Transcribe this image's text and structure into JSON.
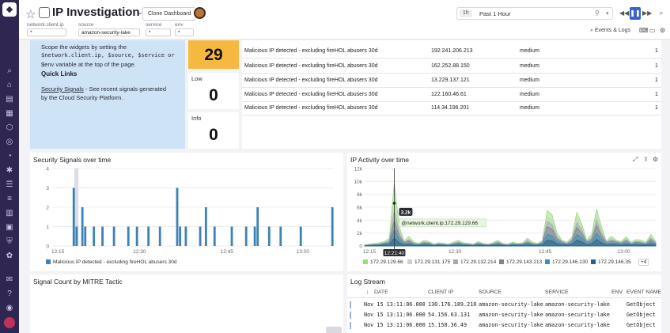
{
  "header": {
    "title": "IP Investigation",
    "clone_label": "Clone Dashboard",
    "time_badge": "1h",
    "time_label": "Past 1 Hour",
    "events_logs_label": "Events & Logs"
  },
  "filters": [
    {
      "label": "network.client.ip",
      "value": "*"
    },
    {
      "label": "source",
      "value": "amazon-security-lake"
    },
    {
      "label": "service",
      "value": "*"
    },
    {
      "label": "env",
      "value": "*"
    }
  ],
  "intro": {
    "line1": "Scope the widgets by setting the",
    "line2": "$network.client.ip, $source, $service or",
    "line3": "$env variable at the top of the page.",
    "quick_links_title": "Quick Links",
    "security_signals_link": "Security Signals",
    "security_signals_desc1": " - See recent signals generated",
    "security_signals_desc2": "by the Cloud Security Platform."
  },
  "severity": {
    "medium_value": "29",
    "low_label": "Low",
    "low_value": "0",
    "info_label": "Info",
    "info_value": "0"
  },
  "signals_table": [
    {
      "rule": "Malicious IP detected - excluding fireHOL abusers 30d",
      "ip": "192.241.206.213",
      "severity": "medium",
      "count": "1"
    },
    {
      "rule": "Malicious IP detected - excluding fireHOL abusers 30d",
      "ip": "162.252.88.150",
      "severity": "medium",
      "count": "1"
    },
    {
      "rule": "Malicious IP detected - excluding fireHOL abusers 30d",
      "ip": "13.229.137.121",
      "severity": "medium",
      "count": "1"
    },
    {
      "rule": "Malicious IP detected - excluding fireHOL abusers 30d",
      "ip": "122.160.46.61",
      "severity": "medium",
      "count": "1"
    },
    {
      "rule": "Malicious IP detected - excluding fireHOL abusers 30d",
      "ip": "114.34.196.201",
      "severity": "medium",
      "count": "1"
    }
  ],
  "widgets": {
    "security_signals_title": "Security Signals over time",
    "ip_activity_title": "IP Activity over time",
    "mitre_title": "Signal Count by MITRE Tactic",
    "log_stream_title": "Log Stream"
  },
  "chart_data": [
    {
      "type": "bar",
      "title": "Security Signals over time",
      "x_ticks": [
        "12:15",
        "12:30",
        "12:45",
        "13:00"
      ],
      "y_ticks": [
        "0",
        "1",
        "2",
        "3",
        "4"
      ],
      "ylim": [
        0,
        4
      ],
      "series": [
        {
          "name": "Malicious IP detected - excluding fireHOL abusers 30d",
          "color": "#3d82b8",
          "values": [
            0,
            0,
            0,
            0,
            0,
            0,
            0,
            3,
            1,
            0,
            2,
            1,
            0,
            0,
            1,
            0,
            0,
            1,
            0,
            0,
            0,
            1,
            0,
            0,
            0,
            0,
            1,
            0,
            0,
            1,
            0,
            0,
            0,
            1,
            0,
            0,
            0,
            1,
            0,
            0,
            0,
            0,
            0,
            3,
            1,
            0,
            1,
            0,
            0,
            0,
            0,
            1,
            0,
            2,
            0,
            0,
            1,
            0,
            0,
            0,
            0,
            0,
            1,
            0,
            0,
            0,
            0,
            1,
            0,
            0,
            1,
            2,
            0,
            0,
            0,
            1,
            0,
            0,
            0,
            1,
            0,
            0,
            0,
            0,
            0,
            0,
            1,
            0,
            0,
            0,
            0,
            0,
            0,
            0,
            0,
            0,
            0,
            2
          ]
        }
      ]
    },
    {
      "type": "area",
      "title": "IP Activity over time",
      "x_ticks": [
        "12:15",
        "12:30",
        "12:45",
        "13:00"
      ],
      "y_ticks": [
        "0",
        "2k",
        "4k",
        "6k",
        "8k",
        "10k",
        "12k"
      ],
      "ylim": [
        0,
        12000
      ],
      "tooltip": {
        "time": "12:21:40",
        "value": "3.2k",
        "label": "@network.client.ip:172.29.129.66"
      },
      "series": [
        {
          "name": "172.29.129.66",
          "color": "#9bdc7a",
          "values": [
            200,
            300,
            400,
            500,
            700,
            1200,
            9800,
            3000,
            800,
            1500,
            600,
            400,
            900,
            700,
            300,
            500,
            400,
            300,
            600,
            900,
            500,
            400,
            300,
            700,
            400,
            300,
            500,
            900,
            400,
            300,
            600,
            400,
            500,
            1200,
            600,
            400,
            800,
            5500,
            4800,
            2000,
            900,
            600,
            1400,
            5200,
            3500,
            900,
            1800,
            5700,
            3000,
            800,
            1500,
            900,
            700,
            1400,
            600,
            1000,
            900,
            600,
            1800,
            700
          ]
        },
        {
          "name": "172.29.131.175",
          "color": "#c4d9c0",
          "values": [
            150,
            250,
            300,
            400,
            600,
            1000,
            7000,
            2500,
            700,
            1200,
            500,
            350,
            700,
            600,
            250,
            400,
            350,
            250,
            500,
            700,
            400,
            350,
            250,
            600,
            350,
            250,
            400,
            700,
            350,
            250,
            500,
            350,
            400,
            1000,
            500,
            350,
            700,
            4500,
            4000,
            1700,
            800,
            500,
            1200,
            4300,
            3000,
            800,
            1500,
            4800,
            2500,
            700,
            1200,
            800,
            600,
            1200,
            500,
            800,
            700,
            500,
            1500,
            600
          ]
        },
        {
          "name": "172.29.132.214",
          "color": "#a4aab4",
          "values": [
            100,
            200,
            250,
            300,
            500,
            800,
            5500,
            2000,
            600,
            1000,
            400,
            300,
            600,
            500,
            200,
            350,
            300,
            200,
            400,
            600,
            350,
            300,
            200,
            500,
            300,
            200,
            350,
            600,
            300,
            200,
            400,
            300,
            350,
            800,
            400,
            300,
            600,
            3800,
            3300,
            1400,
            700,
            400,
            1000,
            3600,
            2500,
            700,
            1200,
            4000,
            2000,
            600,
            1000,
            700,
            500,
            1000,
            400,
            700,
            600,
            400,
            1200,
            500
          ]
        },
        {
          "name": "172.29.143.213",
          "color": "#7c8593",
          "values": [
            80,
            150,
            200,
            250,
            400,
            600,
            4000,
            1500,
            500,
            800,
            300,
            250,
            500,
            400,
            150,
            300,
            250,
            150,
            300,
            500,
            300,
            250,
            150,
            400,
            250,
            150,
            300,
            500,
            250,
            150,
            300,
            250,
            300,
            600,
            300,
            250,
            500,
            3000,
            2600,
            1100,
            600,
            300,
            800,
            2900,
            2000,
            600,
            1000,
            3200,
            1600,
            500,
            800,
            600,
            400,
            800,
            300,
            600,
            500,
            300,
            1000,
            400
          ]
        },
        {
          "name": "172.29.146.130",
          "color": "#3c8fb8",
          "values": [
            60,
            100,
            150,
            200,
            300,
            400,
            2500,
            1000,
            300,
            500,
            200,
            150,
            300,
            250,
            100,
            200,
            150,
            100,
            200,
            300,
            200,
            150,
            100,
            250,
            150,
            100,
            200,
            300,
            150,
            100,
            200,
            150,
            200,
            400,
            200,
            150,
            300,
            1800,
            1600,
            700,
            400,
            200,
            500,
            1800,
            1300,
            400,
            600,
            2000,
            1000,
            300,
            500,
            400,
            250,
            500,
            200,
            400,
            300,
            200,
            600,
            250
          ]
        },
        {
          "name": "172.29.146.35",
          "color": "#2e5f86",
          "values": [
            40,
            60,
            80,
            100,
            150,
            200,
            1200,
            500,
            150,
            250,
            100,
            80,
            150,
            120,
            50,
            100,
            80,
            50,
            100,
            150,
            100,
            80,
            50,
            120,
            80,
            50,
            100,
            150,
            80,
            50,
            100,
            80,
            100,
            200,
            100,
            80,
            150,
            900,
            800,
            350,
            200,
            100,
            250,
            900,
            650,
            200,
            300,
            1000,
            500,
            150,
            250,
            200,
            120,
            250,
            100,
            200,
            150,
            100,
            300,
            120
          ]
        }
      ],
      "legend_more": "+4"
    }
  ],
  "log_stream": {
    "columns": [
      "DATE",
      "CLIENT IP",
      "SOURCE",
      "SERVICE",
      "ENV",
      "EVENT NAME"
    ],
    "rows": [
      {
        "date": "Nov 15 13:11:06.000",
        "ip": "130.176.189.210",
        "source": "amazon-security-lake",
        "service": "amazon-security-lake",
        "env": "",
        "event": "GetObject"
      },
      {
        "date": "Nov 15 13:11:06.000",
        "ip": "54.156.63.131",
        "source": "amazon-security-lake",
        "service": "amazon-security-lake",
        "env": "",
        "event": "GetObject"
      },
      {
        "date": "Nov 15 13:11:06.000",
        "ip": "15.158.36.49",
        "source": "amazon-security-lake",
        "service": "amazon-security-lake",
        "env": "",
        "event": "GetObject"
      }
    ]
  },
  "colors": {
    "medium": "#f5b942",
    "accent": "#3d63c8",
    "rail": "#2f2752"
  }
}
